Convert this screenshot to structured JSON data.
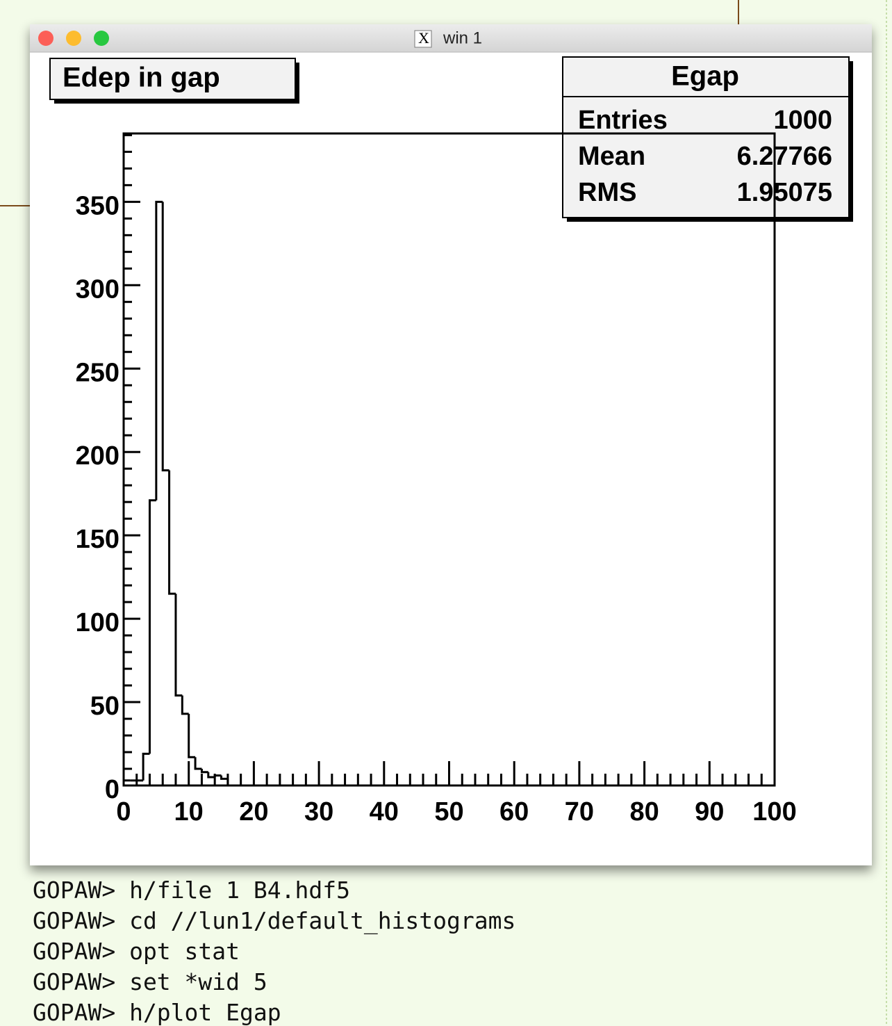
{
  "window": {
    "title": "win 1"
  },
  "chart_data": {
    "type": "histogram",
    "title": "Edep in gap",
    "stats": {
      "title": "Egap",
      "labels": [
        "Entries",
        "Mean",
        "RMS"
      ],
      "values": [
        1000,
        6.27766,
        1.95075
      ]
    },
    "bins": [
      0,
      1,
      2,
      3,
      4,
      5,
      6,
      7,
      8,
      9,
      10,
      11,
      12,
      13,
      14,
      15,
      16,
      17,
      18,
      19,
      20,
      21,
      22,
      23,
      24,
      25,
      26,
      27,
      28,
      29,
      30,
      31,
      32,
      33,
      34,
      35,
      36,
      37,
      38,
      39,
      40,
      41,
      42,
      43,
      44,
      45,
      46,
      47,
      48,
      49,
      50,
      51,
      52,
      53,
      54,
      55,
      56,
      57,
      58,
      59,
      60,
      61,
      62,
      63,
      64,
      65,
      66,
      67,
      68,
      69,
      70,
      71,
      72,
      73,
      74,
      75,
      76,
      77,
      78,
      79,
      80,
      81,
      82,
      83,
      84,
      85,
      86,
      87,
      88,
      89,
      90,
      91,
      92,
      93,
      94,
      95,
      96,
      97,
      98,
      99,
      100
    ],
    "values": [
      3,
      3,
      3,
      19,
      171,
      350,
      189,
      115,
      54,
      43,
      17,
      10,
      8,
      5,
      6,
      4,
      0,
      0,
      0,
      0,
      0,
      0,
      0,
      0,
      0,
      0,
      0,
      0,
      0,
      0,
      0,
      0,
      0,
      0,
      0,
      0,
      0,
      0,
      0,
      0,
      0,
      0,
      0,
      0,
      0,
      0,
      0,
      0,
      0,
      0,
      0,
      0,
      0,
      0,
      0,
      0,
      0,
      0,
      0,
      0,
      0,
      0,
      0,
      0,
      0,
      0,
      0,
      0,
      0,
      0,
      0,
      0,
      0,
      0,
      0,
      0,
      0,
      0,
      0,
      0,
      0,
      0,
      0,
      0,
      0,
      0,
      0,
      0,
      0,
      0,
      0,
      0,
      0,
      0,
      0,
      0,
      0,
      0,
      0,
      0
    ],
    "color": "#000000",
    "xlim": [
      0,
      100
    ],
    "xticks": [
      0,
      10,
      20,
      30,
      40,
      50,
      60,
      70,
      80,
      90,
      100
    ],
    "xminorticks": [
      2,
      4,
      6,
      8,
      12,
      14,
      16,
      18,
      22,
      24,
      26,
      28,
      32,
      34,
      36,
      38,
      42,
      44,
      46,
      48,
      52,
      54,
      56,
      58,
      62,
      64,
      66,
      68,
      72,
      74,
      76,
      78,
      82,
      84,
      86,
      88,
      92,
      94,
      96,
      98
    ],
    "ylim": [
      0,
      391
    ],
    "yticks": [
      0,
      50,
      100,
      150,
      200,
      250,
      300,
      350
    ],
    "yminorticks": [
      10,
      20,
      30,
      40,
      60,
      70,
      80,
      90,
      110,
      120,
      130,
      140,
      160,
      170,
      180,
      190,
      210,
      220,
      230,
      240,
      260,
      270,
      280,
      290,
      310,
      320,
      330,
      340,
      360,
      370,
      380,
      390
    ]
  },
  "terminal": {
    "lines": [
      "GOPAW> h/file 1 B4.hdf5",
      "GOPAW> cd //lun1/default_histograms",
      "GOPAW> opt stat",
      "GOPAW> set *wid 5",
      "GOPAW> h/plot Egap"
    ]
  }
}
